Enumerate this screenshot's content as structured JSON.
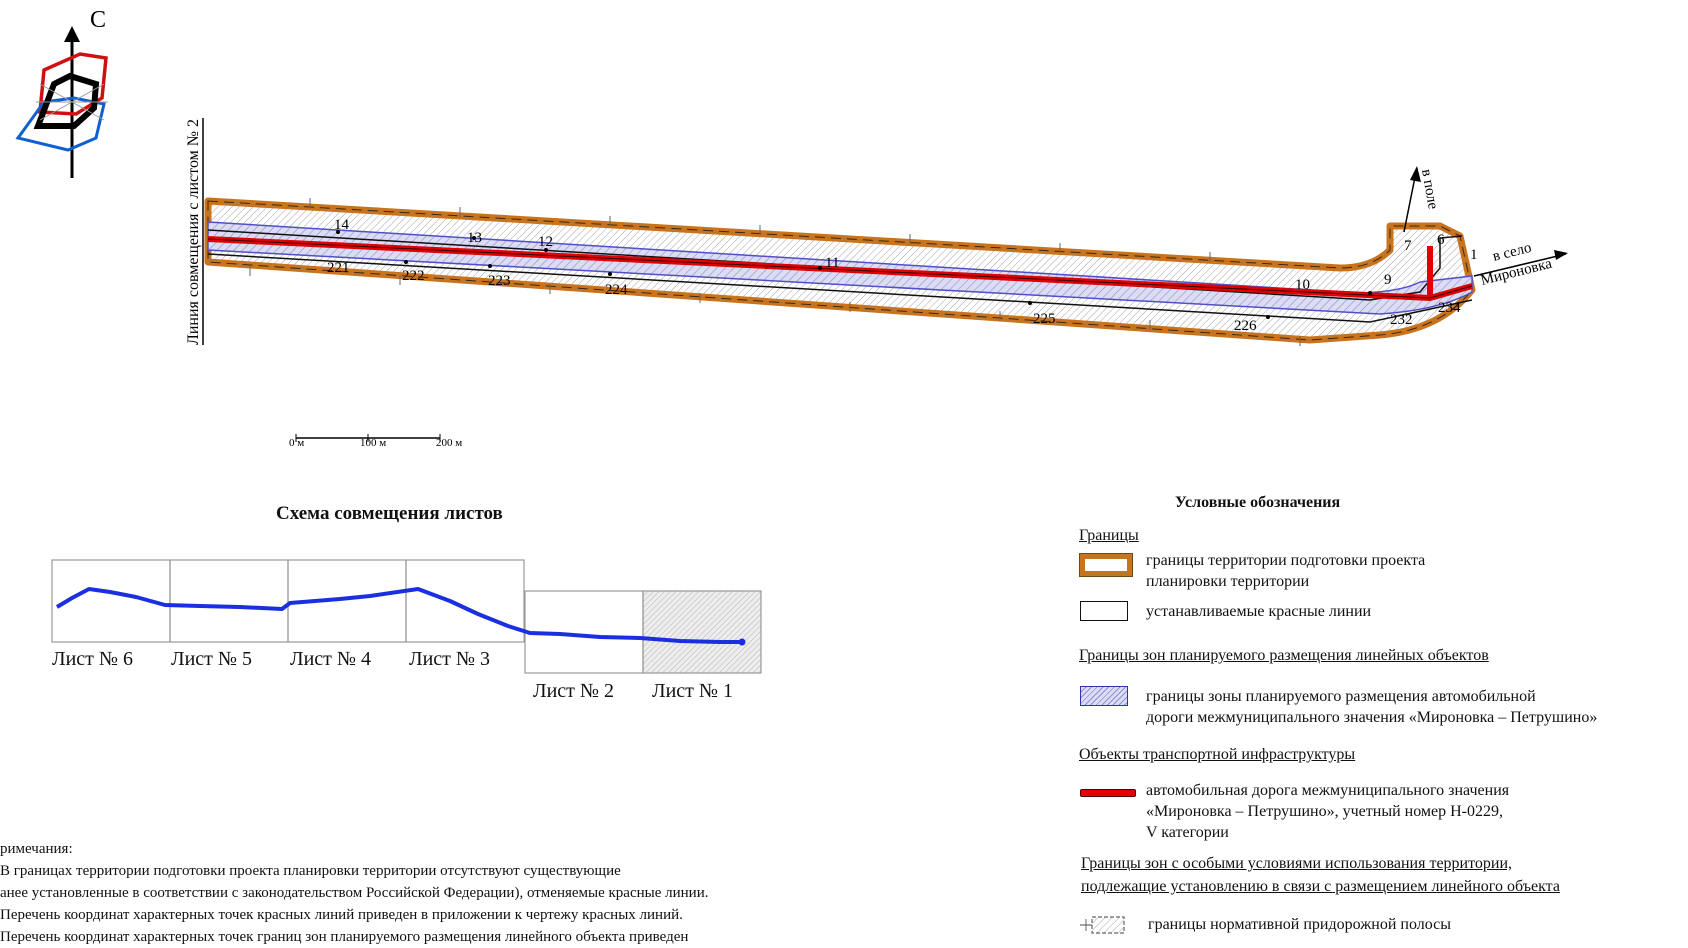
{
  "compass": {
    "north_label": "С"
  },
  "map": {
    "match_line_label": "Линия совмещения с листом № 2",
    "label_to_field": "в поле",
    "label_to_village": "в село",
    "label_village_name": "Мироновка",
    "point_labels_top": [
      "14",
      "13",
      "12",
      "11",
      "10",
      "9",
      "7",
      "6",
      "1"
    ],
    "point_labels_bottom": [
      "221",
      "222",
      "223",
      "224",
      "225",
      "226",
      "232",
      "234"
    ]
  },
  "scale_bar": {
    "labels": [
      "0 м",
      "100 м",
      "200 м"
    ]
  },
  "sheet_scheme": {
    "title": "Схема совмещения листов",
    "sheets": [
      "Лист № 6",
      "Лист № 5",
      "Лист № 4",
      "Лист № 3",
      "Лист № 2",
      "Лист № 1"
    ],
    "current_sheet": "Лист № 1"
  },
  "legend": {
    "title": "Условные обозначения",
    "groups": [
      {
        "heading": "Границы",
        "items": [
          {
            "symbol": "project-boundary",
            "text": "границы территории подготовки проекта\nпланировки территории"
          },
          {
            "symbol": "red-lines",
            "text": "устанавливаемые красные линии"
          }
        ]
      },
      {
        "heading": "Границы зон планируемого размещения линейных объектов",
        "items": [
          {
            "symbol": "placement-zone",
            "text": "границы зоны планируемого размещения автомобильной\nдороги межмуниципального значения «Мироновка – Петрушино»"
          }
        ]
      },
      {
        "heading": "Объекты транспортной инфраструктуры",
        "items": [
          {
            "symbol": "road",
            "text": "автомобильная дорога межмуниципального значения\n«Мироновка – Петрушино», учетный номер Н-0229,\nV категории"
          }
        ]
      },
      {
        "heading": "Границы зон с особыми условиями использования территории,\nподлежащие установлению в связи с размещением линейного объекта",
        "items": [
          {
            "symbol": "roadside-strip",
            "text": "границы нормативной придорожной полосы"
          }
        ]
      }
    ]
  },
  "notes": {
    "lines": [
      "римечания:",
      "В границах территории подготовки проекта планировки территории отсутствуют существующие",
      "анее установленные в соответствии с законодательством Российской Федерации), отменяемые красные линии.",
      "Перечень координат характерных точек красных линий приведен в приложении к чертежу красных линий.",
      "Перечень координат характерных точек границ зон планируемого размещения линейного объекта приведен"
    ]
  },
  "colors": {
    "project_boundary": "#c8731e",
    "road": "#e10000",
    "placement_zone": "#2020c8",
    "red_line": "#111111",
    "sheet_route": "#1a2fe0",
    "compass_red": "#d01010",
    "compass_blue": "#1060d0"
  }
}
